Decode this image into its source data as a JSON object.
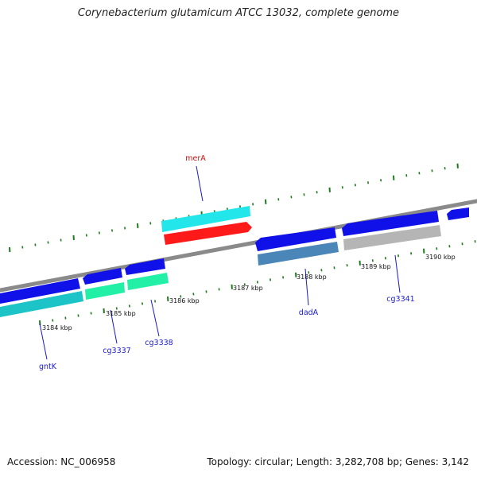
{
  "title": "Corynebacterium glutamicum ATCC 13032, complete genome",
  "footer": {
    "accession": "Accession: NC_006958",
    "summary": "Topology: circular; Length: 3,282,708 bp; Genes: 3,142"
  },
  "colors": {
    "backbone": "#8a8a8a",
    "tick": "#1f7a1f",
    "forward_cds": "#1010e8",
    "label_blue": "#1a1acc",
    "label_red": "#cc1111",
    "mera_cds": "#ff1a1a",
    "mera_gene": "#22e6ea",
    "gntk_gene": "#1cc4c8",
    "cg_green": "#22f0a6",
    "dada_gene": "#4a86b8",
    "cg3341_gene": "#b5b5b5"
  },
  "ticks": [
    "3184 kbp",
    "3185 kbp",
    "3186 kbp",
    "3187 kbp",
    "3188 kbp",
    "3189 kbp",
    "3190 kbp"
  ],
  "genes": [
    {
      "name": "gntK",
      "strand": "reverse"
    },
    {
      "name": "cg3337",
      "strand": "reverse"
    },
    {
      "name": "cg3338",
      "strand": "reverse"
    },
    {
      "name": "merA",
      "strand": "forward"
    },
    {
      "name": "dadA",
      "strand": "reverse"
    },
    {
      "name": "cg3341",
      "strand": "reverse"
    }
  ]
}
